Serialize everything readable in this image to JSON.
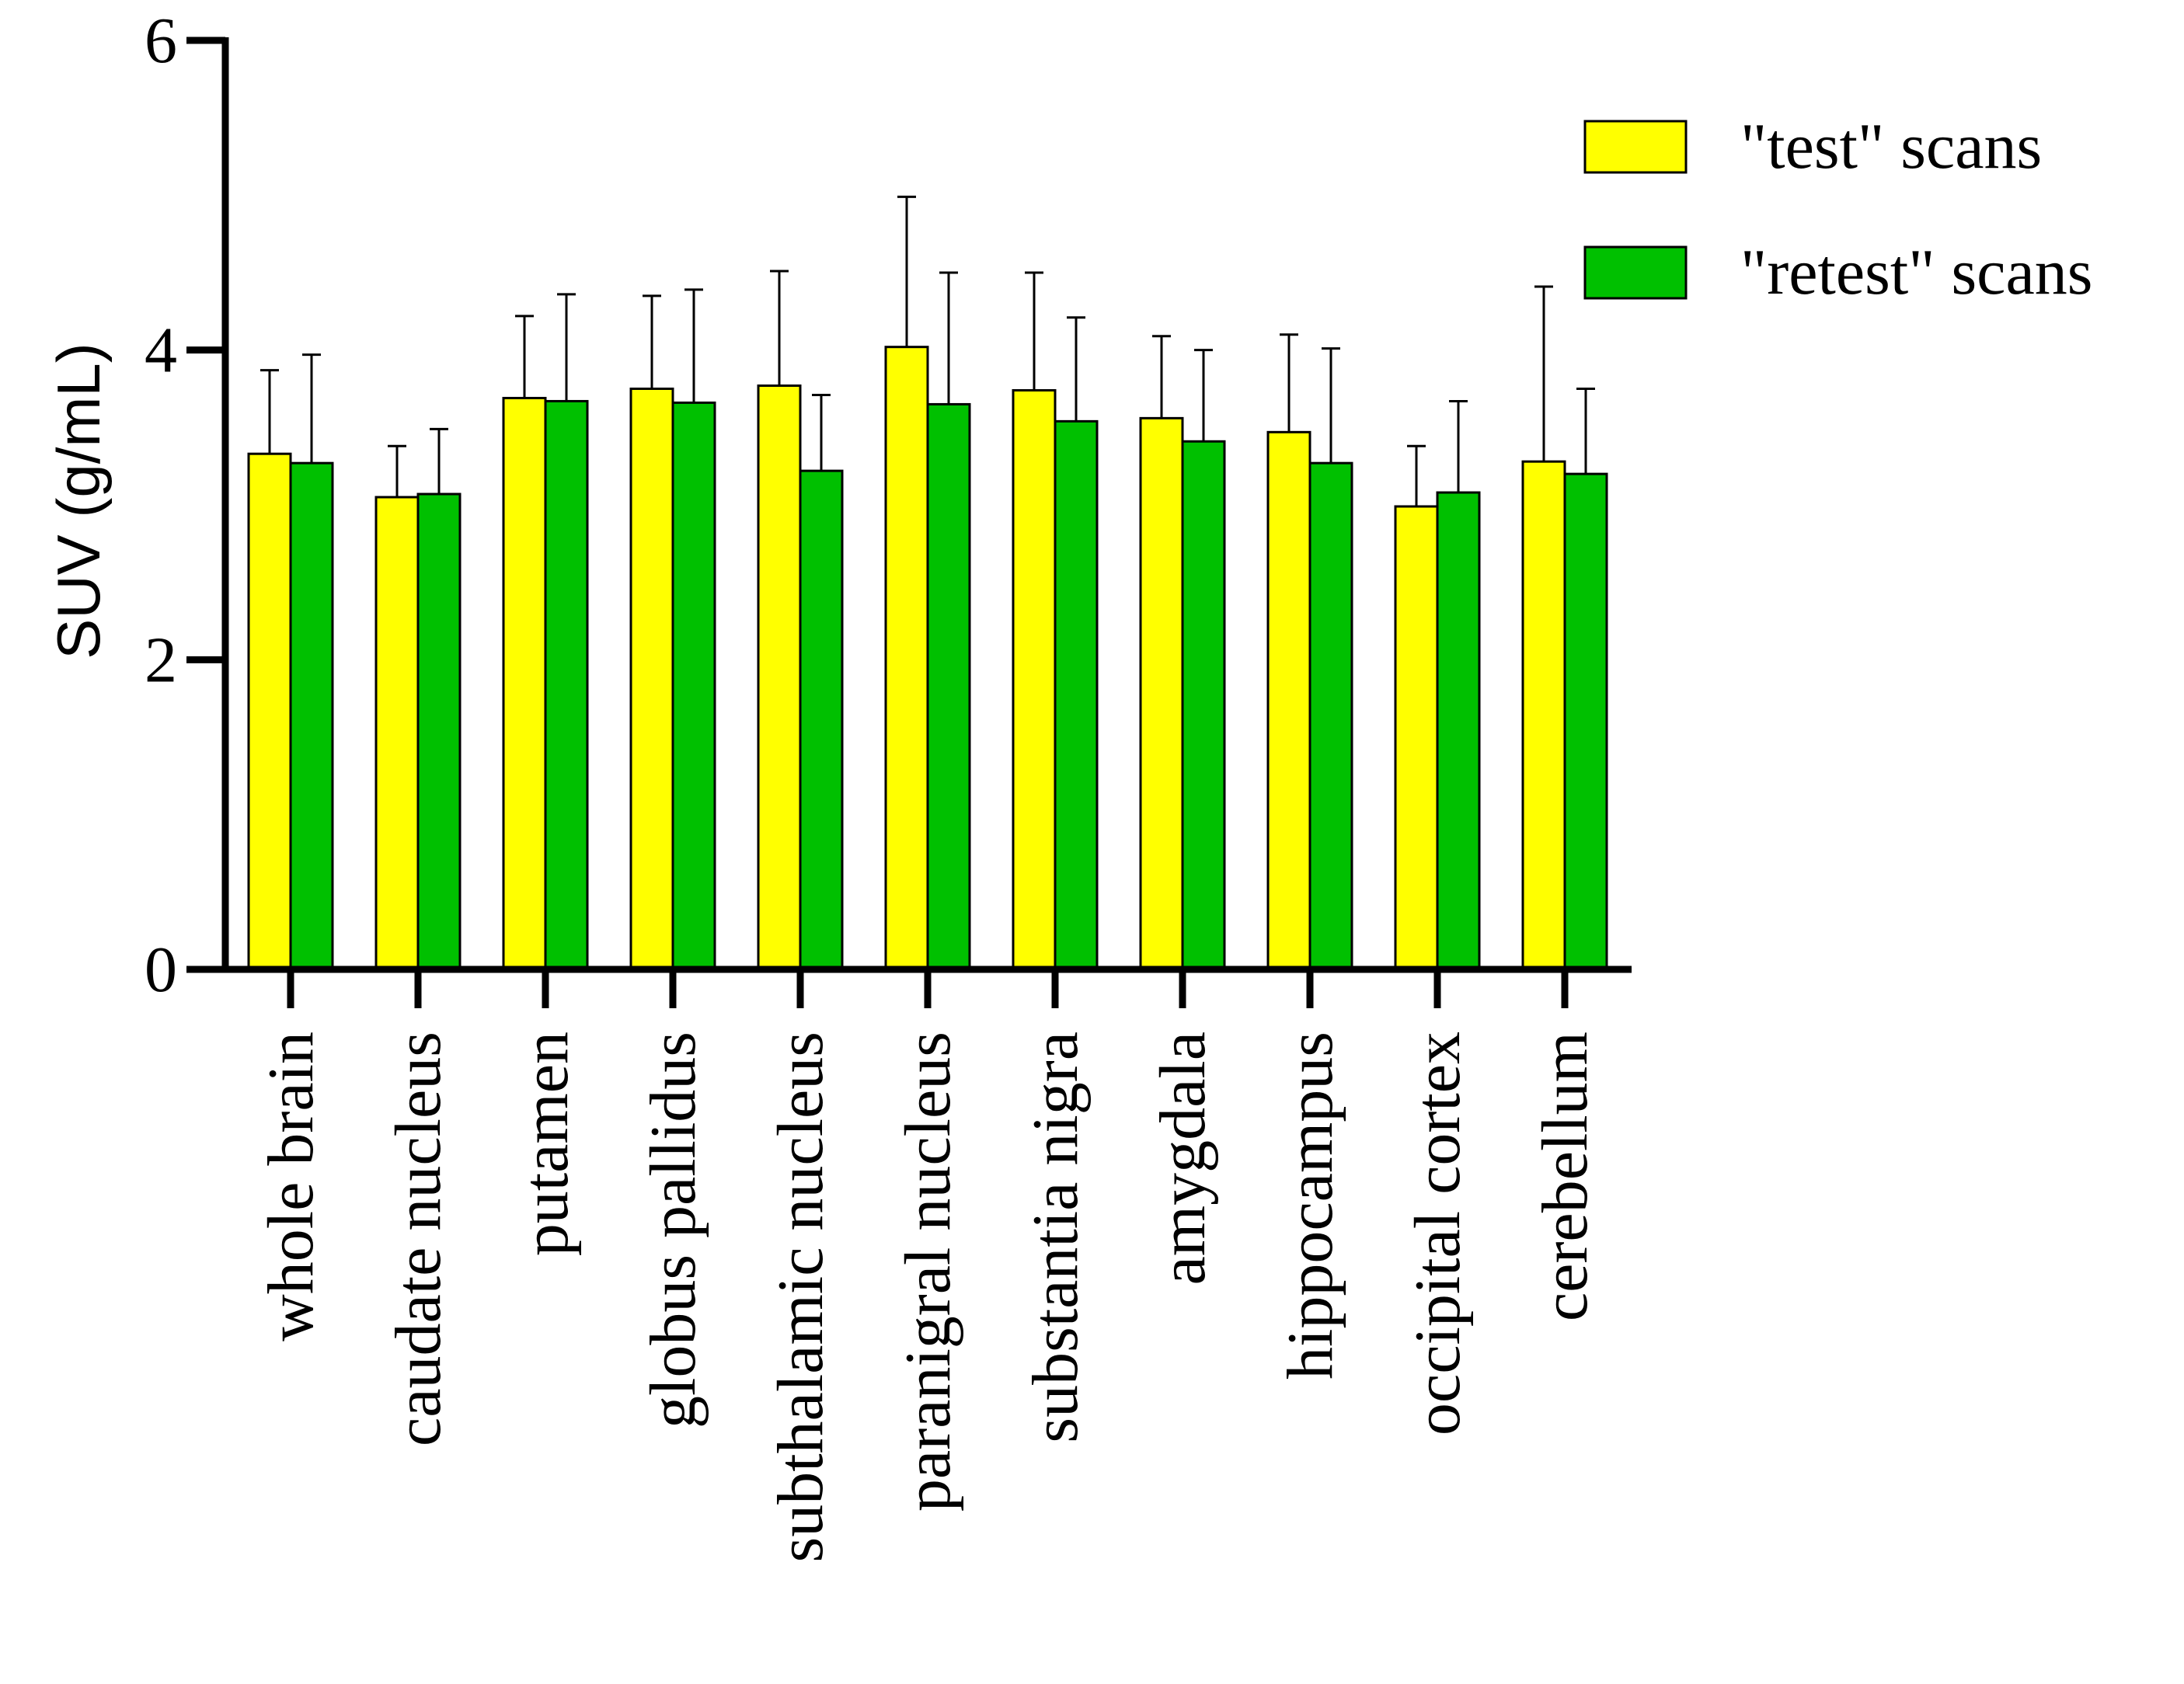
{
  "chart_data": {
    "type": "bar",
    "title": "",
    "xlabel": "",
    "ylabel": "SUV (g/mL)",
    "ylim": [
      0,
      6
    ],
    "yticks": [
      0,
      2,
      4,
      6
    ],
    "ytick_labels": [
      "0",
      "2",
      "4",
      "6"
    ],
    "grid": false,
    "legend_position": "top-right",
    "error_bars": "one-sided upper (SD)",
    "categories": [
      "whole brain",
      "caudate nucleus",
      "putamen",
      "globus pallidus",
      "subthalamic nucleus",
      "paranigral nucleus",
      "substantia nigra",
      "amygdala",
      "hippocampus",
      "occipital cortex",
      "cerebellum"
    ],
    "series": [
      {
        "name": "\"test\" scans",
        "color": "#ffff00",
        "values": [
          3.33,
          3.05,
          3.69,
          3.75,
          3.77,
          4.02,
          3.74,
          3.56,
          3.47,
          2.99,
          3.28
        ],
        "error_upper": [
          3.87,
          3.38,
          4.22,
          4.35,
          4.51,
          4.99,
          4.5,
          4.09,
          4.1,
          3.38,
          4.41
        ]
      },
      {
        "name": "\"retest\" scans",
        "color": "#00c000",
        "values": [
          3.27,
          3.07,
          3.67,
          3.66,
          3.22,
          3.65,
          3.54,
          3.41,
          3.27,
          3.08,
          3.2
        ],
        "error_upper": [
          3.97,
          3.49,
          4.36,
          4.39,
          3.71,
          4.5,
          4.21,
          4.0,
          4.01,
          3.67,
          3.75
        ]
      }
    ]
  }
}
